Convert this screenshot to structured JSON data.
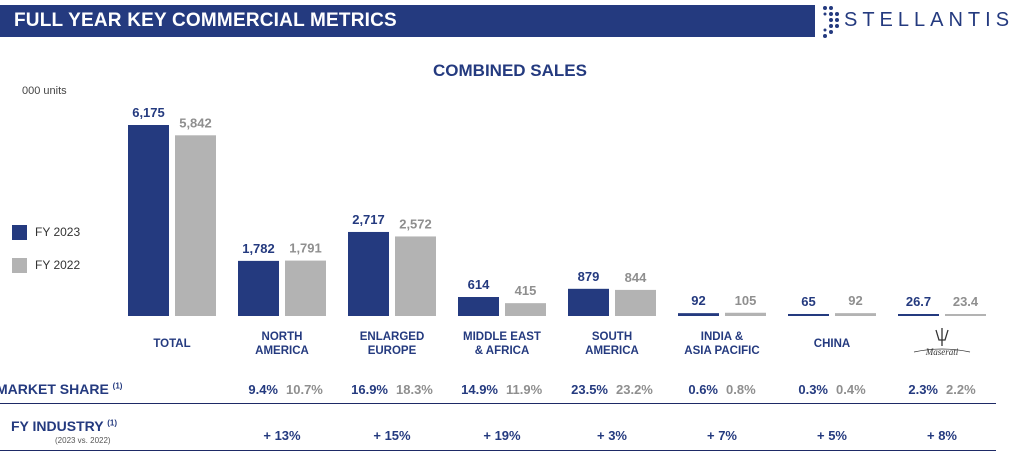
{
  "header": {
    "title": "FULL YEAR KEY COMMERCIAL METRICS",
    "brand": "STELLANTIS"
  },
  "colors": {
    "fy2023": "#243a7f",
    "fy2022": "#b3b3b3",
    "header_bg": "#243a7f"
  },
  "chart_data": {
    "type": "bar",
    "title": "COMBINED SALES",
    "unit_label": "000 units",
    "categories": [
      "TOTAL",
      "NORTH\nAMERICA",
      "ENLARGED\nEUROPE",
      "MIDDLE EAST\n& AFRICA",
      "SOUTH\nAMERICA",
      "INDIA &\nASIA PACIFIC",
      "CHINA",
      ""
    ],
    "category_icons": [
      "",
      "",
      "",
      "",
      "",
      "",
      "",
      "maserati-logo"
    ],
    "series": [
      {
        "name": "FY 2023",
        "values": [
          6175,
          1782,
          2717,
          614,
          879,
          92,
          65,
          26.7
        ],
        "labels": [
          "6,175",
          "1,782",
          "2,717",
          "614",
          "879",
          "92",
          "65",
          "26.7"
        ]
      },
      {
        "name": "FY 2022",
        "values": [
          5842,
          1791,
          2572,
          415,
          844,
          105,
          92,
          23.4
        ],
        "labels": [
          "5,842",
          "1,791",
          "2,572",
          "415",
          "844",
          "105",
          "92",
          "23.4"
        ]
      }
    ],
    "legend_position": "left",
    "gridlines": false
  },
  "market_share": {
    "label": "MARKET SHARE",
    "sup": "(1)",
    "fy2023": [
      "9.4%",
      "16.9%",
      "14.9%",
      "23.5%",
      "0.6%",
      "0.3%",
      "2.3%"
    ],
    "fy2022": [
      "10.7%",
      "18.3%",
      "11.9%",
      "23.2%",
      "0.8%",
      "0.4%",
      "2.2%"
    ]
  },
  "fy_industry": {
    "label": "FY INDUSTRY",
    "sup": "(1)",
    "sublabel": "(2023 vs. 2022)",
    "values": [
      "+ 13%",
      "+ 15%",
      "+ 19%",
      "+ 3%",
      "+ 7%",
      "+ 5%",
      "+ 8%"
    ]
  }
}
